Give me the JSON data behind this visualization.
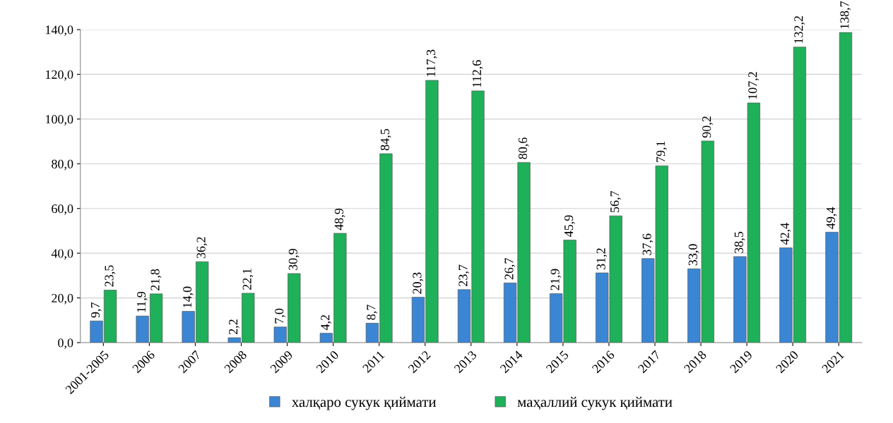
{
  "chart_data": {
    "type": "bar",
    "categories": [
      "2001-2005",
      "2006",
      "2007",
      "2008",
      "2009",
      "2010",
      "2011",
      "2012",
      "2013",
      "2014",
      "2015",
      "2016",
      "2017",
      "2018",
      "2019",
      "2020",
      "2021"
    ],
    "series": [
      {
        "name": "халқаро сукук қиймати",
        "color": "#3a86d4",
        "values": [
          9.7,
          11.9,
          14.0,
          2.2,
          7.0,
          4.2,
          8.7,
          20.3,
          23.7,
          26.7,
          21.9,
          31.2,
          37.6,
          33.0,
          38.5,
          42.4,
          49.4
        ],
        "value_labels": [
          "9,7",
          "11,9",
          "14,0",
          "2,2",
          "7,0",
          "4,2",
          "8,7",
          "20,3",
          "23,7",
          "26,7",
          "21,9",
          "31,2",
          "37,6",
          "33,0",
          "38,5",
          "42,4",
          "49,4"
        ]
      },
      {
        "name": "маҳаллий сукук қиймати",
        "color": "#1fb05a",
        "values": [
          23.5,
          21.8,
          36.2,
          22.1,
          30.9,
          48.9,
          84.5,
          117.3,
          112.6,
          80.6,
          45.9,
          56.7,
          79.1,
          90.2,
          107.2,
          132.2,
          138.7
        ],
        "value_labels": [
          "23,5",
          "21,8",
          "36,2",
          "22,1",
          "30,9",
          "48,9",
          "84,5",
          "117,3",
          "112,6",
          "80,6",
          "45,9",
          "56,7",
          "79,1",
          "90,2",
          "107,2",
          "132,2",
          "138,7"
        ]
      }
    ],
    "ylim": [
      0,
      140
    ],
    "yticks": [
      {
        "value": 0,
        "label": "0,0"
      },
      {
        "value": 20,
        "label": "20,0"
      },
      {
        "value": 40,
        "label": "40,0"
      },
      {
        "value": 60,
        "label": "60,0"
      },
      {
        "value": 80,
        "label": "80,0"
      },
      {
        "value": 100,
        "label": "100,0"
      },
      {
        "value": 120,
        "label": "120,0"
      },
      {
        "value": 140,
        "label": "140,0"
      }
    ],
    "grid": "y",
    "legend": "bottom"
  }
}
